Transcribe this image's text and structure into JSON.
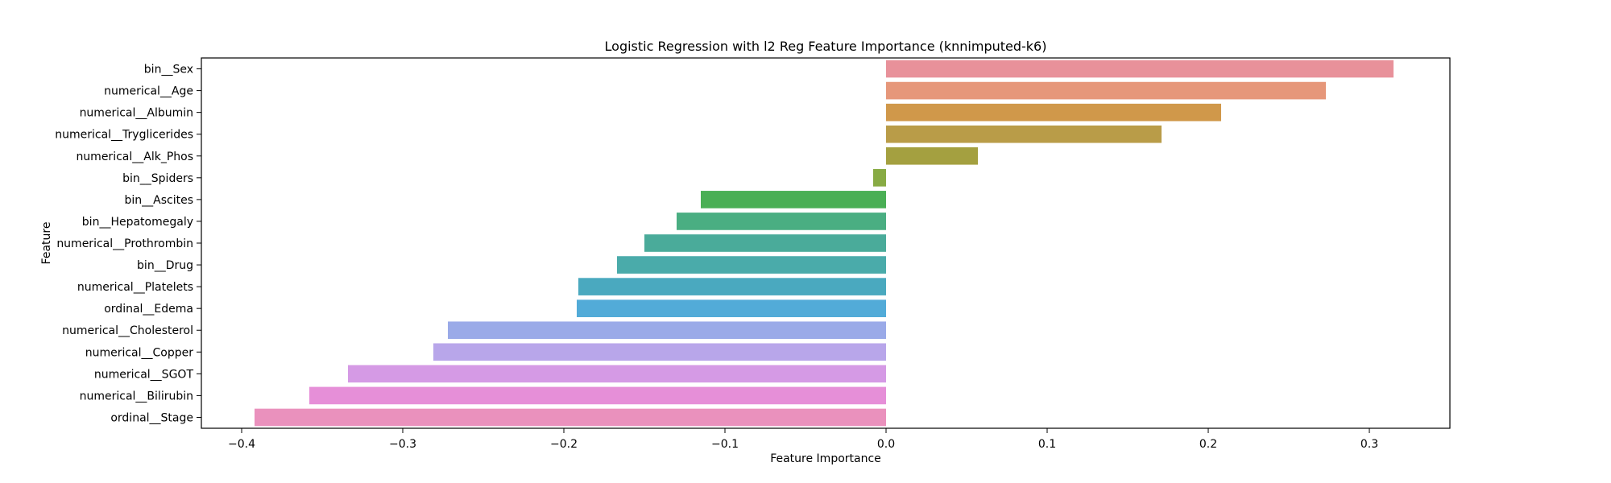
{
  "chart_data": {
    "type": "bar",
    "orientation": "horizontal",
    "title": "Logistic Regression with l2 Reg Feature Importance (knnimputed-k6)",
    "xlabel": "Feature Importance",
    "ylabel": "Feature",
    "xlim": [
      -0.425,
      0.35
    ],
    "xticks": [
      -0.4,
      -0.3,
      -0.2,
      -0.1,
      0.0,
      0.1,
      0.2,
      0.3
    ],
    "xtick_labels": [
      "−0.4",
      "−0.3",
      "−0.2",
      "−0.1",
      "0.0",
      "0.1",
      "0.2",
      "0.3"
    ],
    "grid": false,
    "legend": "none",
    "categories": [
      "bin__Sex",
      "numerical__Age",
      "numerical__Albumin",
      "numerical__Tryglicerides",
      "numerical__Alk_Phos",
      "bin__Spiders",
      "bin__Ascites",
      "bin__Hepatomegaly",
      "numerical__Prothrombin",
      "bin__Drug",
      "numerical__Platelets",
      "ordinal__Edema",
      "numerical__Cholesterol",
      "numerical__Copper",
      "numerical__SGOT",
      "numerical__Bilirubin",
      "ordinal__Stage"
    ],
    "values": [
      0.315,
      0.273,
      0.208,
      0.171,
      0.057,
      -0.008,
      -0.115,
      -0.13,
      -0.15,
      -0.167,
      -0.191,
      -0.192,
      -0.272,
      -0.281,
      -0.334,
      -0.358,
      -0.392
    ],
    "colors": [
      "#e8919a",
      "#e6977a",
      "#d0984a",
      "#b99c48",
      "#a4a040",
      "#88ab44",
      "#4aaf55",
      "#4aae82",
      "#4aab9a",
      "#4aabaa",
      "#4aa9bf",
      "#52abd8",
      "#9aaae8",
      "#b8a6ea",
      "#d59ae5",
      "#e68fd8",
      "#ea91bd"
    ]
  }
}
